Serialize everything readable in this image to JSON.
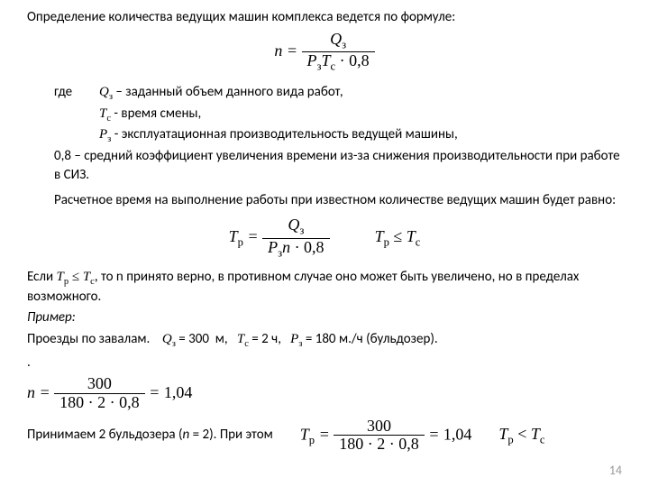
{
  "title": "Определение количества ведущих машин комплекса ведется по формуле:",
  "formula1": {
    "lhs": "n",
    "num": "Q",
    "num_sub": "з",
    "den_left": "P",
    "den_left_sub": "з",
    "den_mid": "T",
    "den_mid_sub": "c",
    "den_const": " · 0,8"
  },
  "where_label": "где",
  "where1": {
    "sym": "Q",
    "sub": "з",
    "text": "– заданный объем данного вида работ,"
  },
  "where2": {
    "sym": "T",
    "sub": "c",
    "text": "- время смены,"
  },
  "where3": {
    "sym": "P",
    "sub": "з",
    "text": "- эксплуатационная производительность ведущей машины,"
  },
  "where4": "0,8 – средний коэффициент увеличения времени из-за снижения производительности при работе в СИЗ.",
  "para2": "Расчетное время на выполнение работы при известном количестве ведущих машин будет равно:",
  "formula2": {
    "lhs": "T",
    "lhs_sub": "p",
    "num": "Q",
    "num_sub": "з",
    "den_left": "P",
    "den_left_sub": "з",
    "den_mid": "n",
    "den_const": " · 0,8"
  },
  "formula2b": {
    "lhs": "T",
    "lhs_sub": "p",
    "op": "≤",
    "rhs": "T",
    "rhs_sub": "c"
  },
  "if_line": {
    "pre": "Если ",
    "post": ", то n принято верно, в противном случае оно может быть увеличено, но в пределах возможного."
  },
  "example_label": "Пример:",
  "example_line": {
    "pre": "Проезды по завалам.",
    "q_val": "300",
    "q_unit": "м,",
    "t_val": "2",
    "t_unit": "ч,",
    "p_val": "180",
    "p_unit": "м./ч (бульдозер)."
  },
  "dot_line": ".",
  "calc1": {
    "num": "300",
    "den": "180 · 2 · 0,8",
    "res": "1,04"
  },
  "accept_line": {
    "pre": "Принимаем 2 бульдозера (",
    "n": "n",
    "post": " = 2). При этом"
  },
  "calc2": {
    "lhs": "T",
    "lhs_sub": "p",
    "num": "300",
    "den": "180 · 2 · 0,8",
    "res": "1,04"
  },
  "final_ineq": {
    "lhs": "T",
    "lhs_sub": "p",
    "op": "<",
    "rhs": "T",
    "rhs_sub": "c"
  },
  "page_number": "14",
  "colors": {
    "text": "#000000",
    "page_num": "#999999",
    "bg": "#ffffff"
  }
}
